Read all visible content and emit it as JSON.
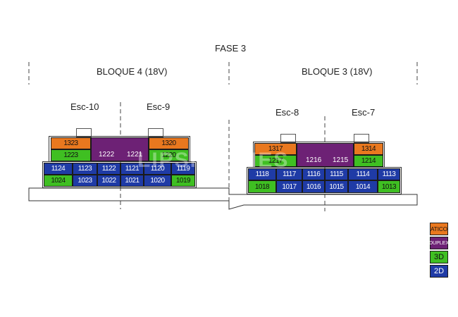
{
  "title": "FASE 3",
  "blocks": [
    {
      "name": "BLOQUE 4 (18V)",
      "stairs": [
        "Esc-10",
        "Esc-9"
      ]
    },
    {
      "name": "BLOQUE 3 (18V)",
      "stairs": [
        "Esc-8",
        "Esc-7"
      ]
    }
  ],
  "units": {
    "b4": {
      "atico": [
        "1323",
        "1320"
      ],
      "duplex": [
        "1222",
        "1221"
      ],
      "r12_3d": [
        "1223",
        "1220"
      ],
      "r11": [
        "1124",
        "1123",
        "1122",
        "1121",
        "1120",
        "1119"
      ],
      "r10": [
        "1024",
        "1023",
        "1022",
        "1021",
        "1020",
        "1019"
      ]
    },
    "b3": {
      "atico": [
        "1317",
        "1314"
      ],
      "duplex": [
        "1216",
        "1215"
      ],
      "r12_3d": [
        "1217",
        "1214"
      ],
      "r11": [
        "1118",
        "1117",
        "1116",
        "1115",
        "1114",
        "1113"
      ],
      "r10": [
        "1018",
        "1017",
        "1016",
        "1015",
        "1014",
        "1013"
      ]
    }
  },
  "legend": [
    {
      "label": "ATICO",
      "color": "#e9781f"
    },
    {
      "label": "DUPLEX",
      "color": "#6d2175"
    },
    {
      "label": "3D",
      "color": "#3fbf22"
    },
    {
      "label": "2D",
      "color": "#1f3ba6"
    }
  ],
  "watermark": "LIPSI HOMES"
}
